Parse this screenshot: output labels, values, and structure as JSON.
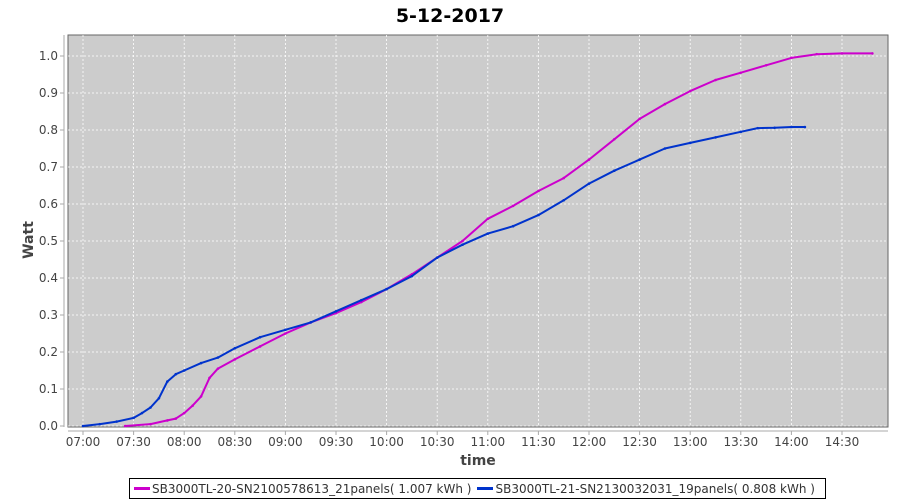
{
  "chart_data": {
    "type": "line",
    "title": "5-12-2017",
    "xlabel": "time",
    "ylabel": "Watt",
    "ylim": [
      0,
      1.05
    ],
    "xlim": [
      "06:51",
      "15:05"
    ],
    "yticks": [
      "0.0",
      "0.1",
      "0.2",
      "0.3",
      "0.4",
      "0.5",
      "0.6",
      "0.7",
      "0.8",
      "0.9",
      "1.0"
    ],
    "xticks": [
      "07:00",
      "07:30",
      "08:00",
      "08:30",
      "09:00",
      "09:30",
      "10:00",
      "10:30",
      "11:00",
      "11:30",
      "12:00",
      "12:30",
      "13:00",
      "13:30",
      "14:00",
      "14:30"
    ],
    "grid": true,
    "legend_position": "bottom",
    "series": [
      {
        "name": "SB3000TL-20-SN2100578613_21panels( 1.007 kWh )",
        "color": "#cc00cc",
        "x": [
          "07:25",
          "07:40",
          "07:50",
          "07:55",
          "08:00",
          "08:05",
          "08:10",
          "08:15",
          "08:20",
          "08:30",
          "08:45",
          "09:00",
          "09:15",
          "09:30",
          "09:45",
          "10:00",
          "10:15",
          "10:30",
          "10:45",
          "11:00",
          "11:15",
          "11:30",
          "11:45",
          "12:00",
          "12:15",
          "12:30",
          "12:45",
          "13:00",
          "13:15",
          "13:30",
          "13:45",
          "14:00",
          "14:15",
          "14:30",
          "14:48"
        ],
        "y": [
          0,
          0.005,
          0.015,
          0.02,
          0.035,
          0.055,
          0.08,
          0.13,
          0.155,
          0.18,
          0.215,
          0.25,
          0.28,
          0.305,
          0.335,
          0.37,
          0.41,
          0.455,
          0.5,
          0.56,
          0.595,
          0.635,
          0.67,
          0.72,
          0.775,
          0.83,
          0.87,
          0.905,
          0.935,
          0.955,
          0.975,
          0.995,
          1.005,
          1.007,
          1.007
        ]
      },
      {
        "name": "SB3000TL-21-SN2130032031_19panels( 0.808 kWh )",
        "color": "#0033cc",
        "x": [
          "07:00",
          "07:10",
          "07:20",
          "07:30",
          "07:35",
          "07:40",
          "07:45",
          "07:50",
          "07:55",
          "08:00",
          "08:10",
          "08:20",
          "08:30",
          "08:45",
          "09:00",
          "09:15",
          "09:30",
          "09:45",
          "10:00",
          "10:15",
          "10:30",
          "10:45",
          "11:00",
          "11:15",
          "11:30",
          "11:45",
          "12:00",
          "12:15",
          "12:30",
          "12:45",
          "13:00",
          "13:15",
          "13:30",
          "13:40",
          "13:50",
          "14:00",
          "14:08"
        ],
        "y": [
          0,
          0.005,
          0.012,
          0.022,
          0.035,
          0.05,
          0.075,
          0.12,
          0.14,
          0.15,
          0.17,
          0.185,
          0.21,
          0.24,
          0.26,
          0.28,
          0.31,
          0.34,
          0.37,
          0.405,
          0.455,
          0.49,
          0.52,
          0.54,
          0.57,
          0.61,
          0.655,
          0.69,
          0.72,
          0.75,
          0.765,
          0.78,
          0.795,
          0.805,
          0.806,
          0.808,
          0.808
        ]
      }
    ]
  }
}
